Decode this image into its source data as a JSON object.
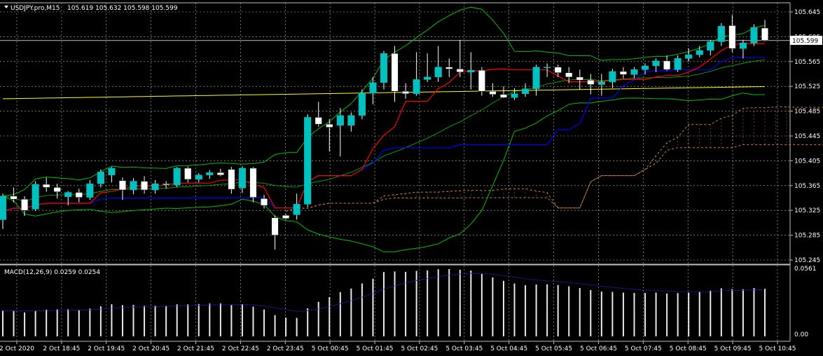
{
  "header": {
    "title": "USDJPY.pro,M15",
    "ohlc": "105.619 105.632 105.598 105.599"
  },
  "macd_panel": {
    "label": "MACD(12,26,9) 0.0259 0.0254",
    "ticks": [
      "0.0561",
      "0.00"
    ]
  },
  "price_label": "105.599",
  "colors": {
    "background": "#000000",
    "grid": "#c0c0c0",
    "bull_body": "#00c0c0",
    "bear_body": "#ffffff",
    "tenkan": "#ff0000",
    "kijun": "#0000ff",
    "upper_lower_bands": "#00c000",
    "ma_yellow": "#ffff00",
    "cloud": "#cd853f",
    "macd_hist": "#e8e8e8",
    "macd_signal": "#2020c0"
  },
  "chart_data": {
    "type": "candlestick",
    "symbol": "USDJPY.pro",
    "timeframe": "M15",
    "ylim": [
      105.235,
      105.66
    ],
    "y_ticks": [
      "105.645",
      "105.605",
      "105.565",
      "105.525",
      "105.485",
      "105.445",
      "105.405",
      "105.365",
      "105.325",
      "105.285",
      "105.245"
    ],
    "x_ticks": [
      "2 Oct 2020",
      "2 Oct 18:45",
      "2 Oct 19:45",
      "2 Oct 20:45",
      "2 Oct 21:45",
      "2 Oct 22:45",
      "2 Oct 23:45",
      "5 Oct 00:45",
      "5 Oct 01:45",
      "5 Oct 02:45",
      "5 Oct 03:45",
      "5 Oct 04:45",
      "5 Oct 05:45",
      "5 Oct 06:45",
      "5 Oct 07:45",
      "5 Oct 08:45",
      "5 Oct 09:45",
      "5 Oct 10:45"
    ],
    "current_price": 105.599,
    "candles": [
      {
        "o": 105.31,
        "h": 105.352,
        "l": 105.295,
        "c": 105.348
      },
      {
        "o": 105.348,
        "h": 105.362,
        "l": 105.338,
        "c": 105.343
      },
      {
        "o": 105.343,
        "h": 105.348,
        "l": 105.316,
        "c": 105.325
      },
      {
        "o": 105.327,
        "h": 105.372,
        "l": 105.324,
        "c": 105.367
      },
      {
        "o": 105.367,
        "h": 105.378,
        "l": 105.355,
        "c": 105.362
      },
      {
        "o": 105.362,
        "h": 105.368,
        "l": 105.344,
        "c": 105.355
      },
      {
        "o": 105.347,
        "h": 105.356,
        "l": 105.333,
        "c": 105.354
      },
      {
        "o": 105.354,
        "h": 105.36,
        "l": 105.338,
        "c": 105.346
      },
      {
        "o": 105.346,
        "h": 105.374,
        "l": 105.342,
        "c": 105.368
      },
      {
        "o": 105.368,
        "h": 105.391,
        "l": 105.362,
        "c": 105.387
      },
      {
        "o": 105.382,
        "h": 105.395,
        "l": 105.37,
        "c": 105.393
      },
      {
        "o": 105.373,
        "h": 105.378,
        "l": 105.342,
        "c": 105.358
      },
      {
        "o": 105.358,
        "h": 105.377,
        "l": 105.351,
        "c": 105.372
      },
      {
        "o": 105.372,
        "h": 105.38,
        "l": 105.352,
        "c": 105.358
      },
      {
        "o": 105.358,
        "h": 105.374,
        "l": 105.352,
        "c": 105.368
      },
      {
        "o": 105.368,
        "h": 105.372,
        "l": 105.36,
        "c": 105.366
      },
      {
        "o": 105.366,
        "h": 105.395,
        "l": 105.362,
        "c": 105.393
      },
      {
        "o": 105.393,
        "h": 105.396,
        "l": 105.37,
        "c": 105.375
      },
      {
        "o": 105.375,
        "h": 105.385,
        "l": 105.37,
        "c": 105.382
      },
      {
        "o": 105.382,
        "h": 105.39,
        "l": 105.376,
        "c": 105.386
      },
      {
        "o": 105.386,
        "h": 105.392,
        "l": 105.38,
        "c": 105.382
      },
      {
        "o": 105.391,
        "h": 105.395,
        "l": 105.352,
        "c": 105.359
      },
      {
        "o": 105.361,
        "h": 105.396,
        "l": 105.353,
        "c": 105.393
      },
      {
        "o": 105.393,
        "h": 105.395,
        "l": 105.338,
        "c": 105.346
      },
      {
        "o": 105.344,
        "h": 105.35,
        "l": 105.328,
        "c": 105.333
      },
      {
        "o": 105.313,
        "h": 105.317,
        "l": 105.262,
        "c": 105.285
      },
      {
        "o": 105.317,
        "h": 105.319,
        "l": 105.31,
        "c": 105.312
      },
      {
        "o": 105.318,
        "h": 105.352,
        "l": 105.31,
        "c": 105.335
      },
      {
        "o": 105.335,
        "h": 105.48,
        "l": 105.33,
        "c": 105.475
      },
      {
        "o": 105.475,
        "h": 105.5,
        "l": 105.46,
        "c": 105.464
      },
      {
        "o": 105.464,
        "h": 105.472,
        "l": 105.42,
        "c": 105.459
      },
      {
        "o": 105.462,
        "h": 105.49,
        "l": 105.412,
        "c": 105.478
      },
      {
        "o": 105.462,
        "h": 105.483,
        "l": 105.452,
        "c": 105.478
      },
      {
        "o": 105.478,
        "h": 105.52,
        "l": 105.472,
        "c": 105.514
      },
      {
        "o": 105.514,
        "h": 105.54,
        "l": 105.496,
        "c": 105.531
      },
      {
        "o": 105.531,
        "h": 105.582,
        "l": 105.52,
        "c": 105.578
      },
      {
        "o": 105.578,
        "h": 105.59,
        "l": 105.5,
        "c": 105.517
      },
      {
        "o": 105.517,
        "h": 105.53,
        "l": 105.505,
        "c": 105.513
      },
      {
        "o": 105.513,
        "h": 105.58,
        "l": 105.51,
        "c": 105.536
      },
      {
        "o": 105.536,
        "h": 105.578,
        "l": 105.532,
        "c": 105.54
      },
      {
        "o": 105.54,
        "h": 105.59,
        "l": 105.532,
        "c": 105.556
      },
      {
        "o": 105.556,
        "h": 105.57,
        "l": 105.54,
        "c": 105.553
      },
      {
        "o": 105.553,
        "h": 105.6,
        "l": 105.54,
        "c": 105.548
      },
      {
        "o": 105.548,
        "h": 105.58,
        "l": 105.52,
        "c": 105.551
      },
      {
        "o": 105.551,
        "h": 105.556,
        "l": 105.51,
        "c": 105.517
      },
      {
        "o": 105.517,
        "h": 105.53,
        "l": 105.508,
        "c": 105.512
      },
      {
        "o": 105.512,
        "h": 105.525,
        "l": 105.506,
        "c": 105.507
      },
      {
        "o": 105.507,
        "h": 105.522,
        "l": 105.503,
        "c": 105.513
      },
      {
        "o": 105.513,
        "h": 105.53,
        "l": 105.508,
        "c": 105.521
      },
      {
        "o": 105.521,
        "h": 105.56,
        "l": 105.51,
        "c": 105.556
      },
      {
        "o": 105.556,
        "h": 105.562,
        "l": 105.54,
        "c": 105.556
      },
      {
        "o": 105.556,
        "h": 105.56,
        "l": 105.54,
        "c": 105.547
      },
      {
        "o": 105.547,
        "h": 105.556,
        "l": 105.53,
        "c": 105.54
      },
      {
        "o": 105.54,
        "h": 105.552,
        "l": 105.52,
        "c": 105.535
      },
      {
        "o": 105.535,
        "h": 105.545,
        "l": 105.512,
        "c": 105.528
      },
      {
        "o": 105.528,
        "h": 105.545,
        "l": 105.51,
        "c": 105.532
      },
      {
        "o": 105.532,
        "h": 105.553,
        "l": 105.522,
        "c": 105.549
      },
      {
        "o": 105.549,
        "h": 105.556,
        "l": 105.538,
        "c": 105.544
      },
      {
        "o": 105.544,
        "h": 105.556,
        "l": 105.538,
        "c": 105.552
      },
      {
        "o": 105.552,
        "h": 105.562,
        "l": 105.544,
        "c": 105.558
      },
      {
        "o": 105.558,
        "h": 105.57,
        "l": 105.548,
        "c": 105.566
      },
      {
        "o": 105.566,
        "h": 105.575,
        "l": 105.55,
        "c": 105.552
      },
      {
        "o": 105.552,
        "h": 105.575,
        "l": 105.548,
        "c": 105.57
      },
      {
        "o": 105.57,
        "h": 105.586,
        "l": 105.565,
        "c": 105.576
      },
      {
        "o": 105.576,
        "h": 105.59,
        "l": 105.572,
        "c": 105.583
      },
      {
        "o": 105.583,
        "h": 105.6,
        "l": 105.575,
        "c": 105.597
      },
      {
        "o": 105.597,
        "h": 105.627,
        "l": 105.59,
        "c": 105.622
      },
      {
        "o": 105.623,
        "h": 105.64,
        "l": 105.58,
        "c": 105.586
      },
      {
        "o": 105.586,
        "h": 105.6,
        "l": 105.57,
        "c": 105.595
      },
      {
        "o": 105.595,
        "h": 105.625,
        "l": 105.59,
        "c": 105.62
      },
      {
        "o": 105.619,
        "h": 105.632,
        "l": 105.598,
        "c": 105.599
      }
    ]
  }
}
